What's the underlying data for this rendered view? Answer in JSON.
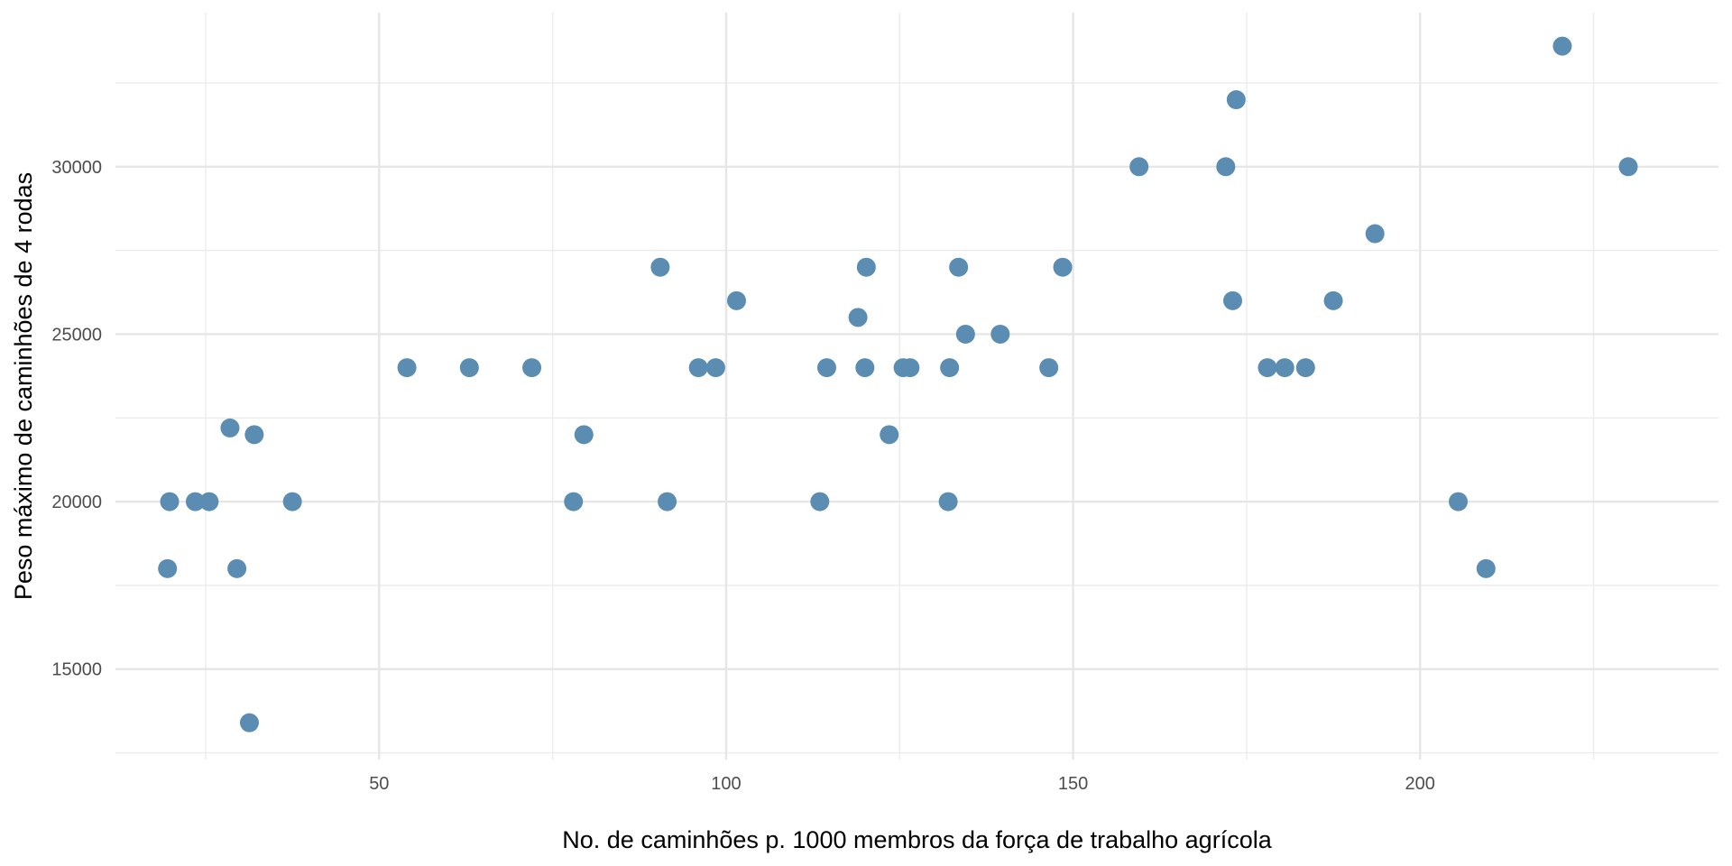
{
  "chart_data": {
    "type": "scatter",
    "title": "",
    "xlabel": "No. de caminhões p. 1000 membros da força de trabalho agrícola",
    "ylabel": "Peso máximo de caminhões de 4 rodas",
    "xlim": [
      12,
      243
    ],
    "ylim": [
      12300,
      34600
    ],
    "x_ticks": [
      50,
      100,
      150,
      200
    ],
    "y_ticks": [
      15000,
      20000,
      25000,
      30000
    ],
    "x_tick_labels": [
      "50",
      "100",
      "150",
      "200"
    ],
    "y_tick_labels": [
      "15000",
      "20000",
      "25000",
      "30000"
    ],
    "x_minor_ticks": [
      25,
      75,
      125,
      175,
      225
    ],
    "y_minor_ticks": [
      12500,
      17500,
      22500,
      27500,
      32500
    ],
    "grid": true,
    "point_color": "#5b8db3",
    "series": [
      {
        "x": [
          19.5,
          19.8,
          23.5,
          25.5,
          28.5,
          29.5,
          31.3,
          32.0,
          37.5,
          54.0,
          63.0,
          72.0,
          78.0,
          79.5,
          90.5,
          91.5,
          96.0,
          98.5,
          101.5,
          113.5,
          114.5,
          119.0,
          120.0,
          120.2,
          123.5,
          125.5,
          126.5,
          132.0,
          132.2,
          133.5,
          134.5,
          139.5,
          146.5,
          148.5,
          159.5,
          172.0,
          173.0,
          173.5,
          178.0,
          180.5,
          183.5,
          187.5,
          193.5,
          205.5,
          209.5,
          220.5,
          230.0
        ],
        "y": [
          18000,
          20000,
          20000,
          20000,
          22200,
          18000,
          13400,
          22000,
          20000,
          24000,
          24000,
          24000,
          20000,
          22000,
          27000,
          20000,
          24000,
          24000,
          26000,
          20000,
          24000,
          25500,
          24000,
          27000,
          22000,
          24000,
          24000,
          20000,
          24000,
          27000,
          25000,
          25000,
          24000,
          27000,
          30000,
          30000,
          26000,
          32000,
          24000,
          24000,
          24000,
          26000,
          28000,
          20000,
          18000,
          33600,
          30000
        ]
      }
    ]
  }
}
